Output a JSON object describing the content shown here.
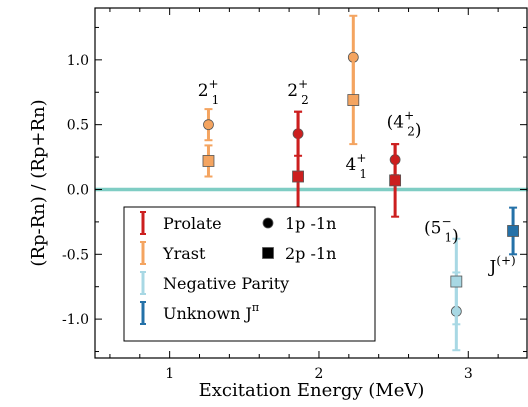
{
  "chart_data": {
    "type": "scatter",
    "xlabel": "Excitation Energy (MeV)",
    "ylabel": "(Rp-Rn) / (Rp+Rn)",
    "xlim": [
      0.5,
      3.4
    ],
    "ylim": [
      -1.3,
      1.4
    ],
    "x_ticks": [
      1,
      2,
      3
    ],
    "y_ticks": [
      1.0,
      0.5,
      0.0,
      -0.5,
      -1.0
    ],
    "x_tick_labels": [
      "1",
      "2",
      "3"
    ],
    "y_tick_labels": [
      "1.0",
      "0.5",
      "0.0",
      "-0.5",
      "-1.0"
    ],
    "reference_line": {
      "y": 0.0,
      "color": "#7fcdc4"
    },
    "colors": {
      "Prolate": "#cc1f1f",
      "Yrast": "#f4a460",
      "Negative Parity": "#a8d8e4",
      "Unknown": "#2471a8"
    },
    "series": [
      {
        "name": "Prolate 1p -1n",
        "category": "Prolate",
        "marker": "circle",
        "points": [
          {
            "x": 1.86,
            "y": 0.43,
            "err": 0.17
          },
          {
            "x": 2.51,
            "y": 0.23,
            "err": 0.12
          }
        ]
      },
      {
        "name": "Prolate 2p -1n",
        "category": "Prolate",
        "marker": "square",
        "points": [
          {
            "x": 1.86,
            "y": 0.1,
            "err": 0.5
          },
          {
            "x": 2.51,
            "y": 0.07,
            "err": 0.28
          }
        ]
      },
      {
        "name": "Yrast 1p -1n",
        "category": "Yrast",
        "marker": "circle",
        "points": [
          {
            "x": 1.26,
            "y": 0.5,
            "err": 0.12
          },
          {
            "x": 2.23,
            "y": 1.02,
            "err": 0.32
          }
        ]
      },
      {
        "name": "Yrast 2p -1n",
        "category": "Yrast",
        "marker": "square",
        "points": [
          {
            "x": 1.26,
            "y": 0.22,
            "err": 0.12
          },
          {
            "x": 2.23,
            "y": 0.69,
            "err": 0.34
          }
        ]
      },
      {
        "name": "Negative Parity 1p -1n",
        "category": "Negative Parity",
        "marker": "circle",
        "points": [
          {
            "x": 2.92,
            "y": -0.94,
            "err": 0.3
          }
        ]
      },
      {
        "name": "Negative Parity 2p -1n",
        "category": "Negative Parity",
        "marker": "square",
        "points": [
          {
            "x": 2.92,
            "y": -0.71,
            "err": 0.33
          }
        ]
      },
      {
        "name": "Unknown J 2p -1n",
        "category": "Unknown",
        "marker": "square",
        "points": [
          {
            "x": 3.3,
            "y": -0.32,
            "err": 0.18
          }
        ]
      }
    ],
    "annotations": [
      {
        "base": "2",
        "sub": "1",
        "sup": "+",
        "paren": false,
        "x": 1.26,
        "y": 0.72
      },
      {
        "base": "2",
        "sub": "2",
        "sup": "+",
        "paren": false,
        "x": 1.86,
        "y": 0.72
      },
      {
        "base": "4",
        "sub": "1",
        "sup": "+",
        "paren": false,
        "x": 2.25,
        "y": 0.15
      },
      {
        "base": "4",
        "sub": "2",
        "sup": "+",
        "paren": true,
        "x": 2.57,
        "y": 0.48
      },
      {
        "base": "5",
        "sub": "1",
        "sup": "−",
        "paren": true,
        "x": 2.82,
        "y": -0.34
      },
      {
        "base": "J",
        "sub": "",
        "sup": "(+)",
        "paren": false,
        "x": 3.23,
        "y": -0.64
      }
    ],
    "legend": {
      "placement": "bottom-left",
      "entries": [
        {
          "label": "Prolate",
          "category": "Prolate"
        },
        {
          "label": "Yrast",
          "category": "Yrast"
        },
        {
          "label": "Negative Parity",
          "category": "Negative Parity"
        },
        {
          "label": "Unknown J",
          "label_sup": "π",
          "category": "Unknown"
        }
      ],
      "marker_entries": [
        {
          "label": "1p -1n",
          "marker": "circle"
        },
        {
          "label": "2p -1n",
          "marker": "square"
        }
      ]
    }
  }
}
